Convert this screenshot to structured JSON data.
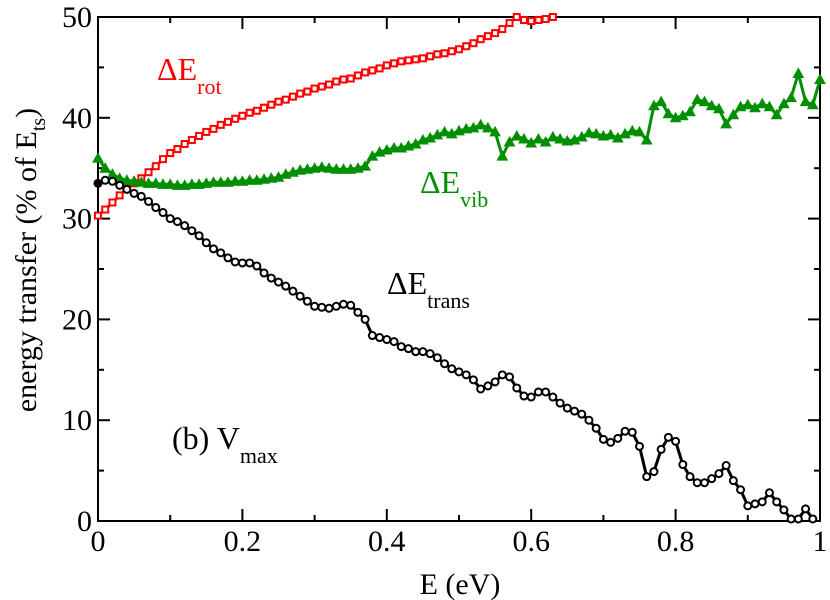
{
  "chart_data": {
    "type": "line",
    "title": "",
    "xlabel": "E (eV)",
    "ylabel_main": "energy transfer (% of E",
    "ylabel_sub": "ts",
    "ylabel_end": ")",
    "xlim": [
      0,
      1
    ],
    "ylim": [
      0,
      50
    ],
    "x_ticks": [
      0,
      0.2,
      0.4,
      0.6,
      0.8,
      1
    ],
    "x_tick_labels": [
      "0",
      "0.2",
      "0.4",
      "0.6",
      "0.8",
      "1"
    ],
    "y_ticks": [
      0,
      10,
      20,
      30,
      40,
      50
    ],
    "y_tick_labels": [
      "0",
      "10",
      "20",
      "30",
      "40",
      "50"
    ],
    "panel_label": {
      "main": "(b) V",
      "sub": "max"
    },
    "series": [
      {
        "name": "ΔE_rot",
        "label_main": "ΔE",
        "label_sub": "rot",
        "color": "#ff0000",
        "marker": "square",
        "x": [
          0.0,
          0.01,
          0.02,
          0.03,
          0.04,
          0.05,
          0.06,
          0.07,
          0.08,
          0.09,
          0.1,
          0.11,
          0.12,
          0.13,
          0.14,
          0.15,
          0.16,
          0.17,
          0.18,
          0.19,
          0.2,
          0.21,
          0.22,
          0.23,
          0.24,
          0.25,
          0.26,
          0.27,
          0.28,
          0.29,
          0.3,
          0.31,
          0.32,
          0.33,
          0.34,
          0.35,
          0.36,
          0.37,
          0.38,
          0.39,
          0.4,
          0.41,
          0.42,
          0.43,
          0.44,
          0.45,
          0.46,
          0.47,
          0.48,
          0.49,
          0.5,
          0.51,
          0.52,
          0.53,
          0.54,
          0.55,
          0.56,
          0.57,
          0.58,
          0.59,
          0.6,
          0.61,
          0.62,
          0.63
        ],
        "y": [
          30.3,
          30.9,
          31.6,
          32.3,
          33.0,
          33.5,
          34.0,
          34.6,
          35.2,
          35.9,
          36.5,
          36.9,
          37.4,
          37.8,
          38.2,
          38.6,
          38.9,
          39.3,
          39.6,
          39.9,
          40.2,
          40.5,
          40.7,
          41.0,
          41.3,
          41.6,
          41.8,
          42.1,
          42.4,
          42.6,
          42.9,
          43.1,
          43.3,
          43.6,
          43.8,
          43.9,
          44.2,
          44.5,
          44.7,
          44.9,
          45.2,
          45.4,
          45.6,
          45.7,
          45.8,
          45.9,
          46.1,
          46.3,
          46.4,
          46.6,
          46.8,
          47.1,
          47.4,
          47.8,
          48.1,
          48.4,
          48.8,
          49.4,
          50.0,
          49.7,
          49.6,
          49.7,
          49.8,
          50.0
        ]
      },
      {
        "name": "ΔE_vib",
        "label_main": "ΔE",
        "label_sub": "vib",
        "color": "#008f00",
        "marker": "triangle",
        "x": [
          0.0,
          0.01,
          0.02,
          0.03,
          0.04,
          0.05,
          0.06,
          0.07,
          0.08,
          0.09,
          0.1,
          0.11,
          0.12,
          0.13,
          0.14,
          0.15,
          0.16,
          0.17,
          0.18,
          0.19,
          0.2,
          0.21,
          0.22,
          0.23,
          0.24,
          0.25,
          0.26,
          0.27,
          0.28,
          0.29,
          0.3,
          0.31,
          0.32,
          0.33,
          0.34,
          0.35,
          0.36,
          0.37,
          0.38,
          0.39,
          0.4,
          0.41,
          0.42,
          0.43,
          0.44,
          0.45,
          0.46,
          0.47,
          0.48,
          0.49,
          0.5,
          0.51,
          0.52,
          0.53,
          0.54,
          0.55,
          0.56,
          0.57,
          0.58,
          0.59,
          0.6,
          0.61,
          0.62,
          0.63,
          0.64,
          0.65,
          0.66,
          0.67,
          0.68,
          0.69,
          0.7,
          0.71,
          0.72,
          0.73,
          0.74,
          0.75,
          0.76,
          0.77,
          0.78,
          0.79,
          0.8,
          0.81,
          0.82,
          0.83,
          0.84,
          0.85,
          0.86,
          0.87,
          0.88,
          0.89,
          0.9,
          0.91,
          0.92,
          0.93,
          0.94,
          0.95,
          0.96,
          0.97,
          0.98,
          0.99,
          1.0
        ],
        "y": [
          36.0,
          35.0,
          34.4,
          34.0,
          33.8,
          33.7,
          33.6,
          33.5,
          33.5,
          33.4,
          33.4,
          33.3,
          33.3,
          33.4,
          33.4,
          33.5,
          33.6,
          33.6,
          33.6,
          33.7,
          33.7,
          33.8,
          33.8,
          33.9,
          34.0,
          34.1,
          34.4,
          34.6,
          34.8,
          34.9,
          35.0,
          35.1,
          35.0,
          34.9,
          34.9,
          34.9,
          35.0,
          35.2,
          36.2,
          36.6,
          36.8,
          37.0,
          37.0,
          37.2,
          37.4,
          37.8,
          38.0,
          38.3,
          38.6,
          38.4,
          38.7,
          38.9,
          39.0,
          39.3,
          39.0,
          38.6,
          36.2,
          37.6,
          38.2,
          37.9,
          37.5,
          37.9,
          37.6,
          38.1,
          37.9,
          37.7,
          37.8,
          38.1,
          38.5,
          38.4,
          38.2,
          38.3,
          38.0,
          38.4,
          38.7,
          38.6,
          37.8,
          41.2,
          41.6,
          40.4,
          40.0,
          40.2,
          40.6,
          41.8,
          41.6,
          41.2,
          40.9,
          39.4,
          40.3,
          41.1,
          41.3,
          41.0,
          41.4,
          41.1,
          40.3,
          41.4,
          42.0,
          44.4,
          41.6,
          41.3,
          43.8
        ]
      },
      {
        "name": "ΔE_trans",
        "label_main": "ΔE",
        "label_sub": "trans",
        "color": "#000000",
        "marker": "circle",
        "x": [
          0.0,
          0.01,
          0.02,
          0.03,
          0.04,
          0.05,
          0.06,
          0.07,
          0.08,
          0.09,
          0.1,
          0.11,
          0.12,
          0.13,
          0.14,
          0.15,
          0.16,
          0.17,
          0.18,
          0.19,
          0.2,
          0.21,
          0.22,
          0.23,
          0.24,
          0.25,
          0.26,
          0.27,
          0.28,
          0.29,
          0.3,
          0.31,
          0.32,
          0.33,
          0.34,
          0.35,
          0.36,
          0.37,
          0.38,
          0.39,
          0.4,
          0.41,
          0.42,
          0.43,
          0.44,
          0.45,
          0.46,
          0.47,
          0.48,
          0.49,
          0.5,
          0.51,
          0.52,
          0.53,
          0.54,
          0.55,
          0.56,
          0.57,
          0.58,
          0.59,
          0.6,
          0.61,
          0.62,
          0.63,
          0.64,
          0.65,
          0.66,
          0.67,
          0.68,
          0.69,
          0.7,
          0.71,
          0.72,
          0.73,
          0.74,
          0.75,
          0.76,
          0.77,
          0.78,
          0.79,
          0.8,
          0.81,
          0.82,
          0.83,
          0.84,
          0.85,
          0.86,
          0.87,
          0.88,
          0.89,
          0.9,
          0.91,
          0.92,
          0.93,
          0.94,
          0.95,
          0.96,
          0.97,
          0.98,
          0.99
        ],
        "y": [
          33.5,
          33.8,
          33.7,
          33.3,
          32.9,
          32.5,
          32.2,
          31.7,
          31.1,
          30.6,
          30.0,
          29.7,
          29.3,
          28.8,
          28.3,
          27.6,
          27.0,
          26.6,
          26.1,
          25.7,
          25.6,
          25.6,
          25.3,
          24.6,
          24.1,
          23.7,
          23.3,
          22.8,
          22.3,
          21.8,
          21.3,
          21.2,
          21.1,
          21.3,
          21.5,
          21.4,
          20.7,
          20.0,
          18.4,
          18.2,
          18.0,
          17.8,
          17.3,
          17.1,
          16.8,
          16.8,
          16.6,
          16.2,
          15.6,
          15.1,
          14.8,
          14.5,
          14.0,
          13.1,
          13.4,
          13.8,
          14.5,
          14.3,
          13.2,
          12.4,
          12.3,
          12.8,
          12.8,
          12.3,
          11.7,
          11.2,
          10.9,
          10.6,
          10.0,
          9.2,
          8.1,
          7.8,
          8.2,
          8.9,
          8.8,
          7.4,
          4.4,
          4.9,
          7.1,
          8.3,
          7.9,
          5.6,
          4.4,
          3.8,
          3.8,
          4.2,
          4.7,
          5.5,
          4.0,
          3.1,
          1.5,
          1.7,
          1.9,
          2.8,
          1.9,
          1.1,
          0.2,
          0.2,
          1.2,
          0.2
        ]
      }
    ]
  }
}
